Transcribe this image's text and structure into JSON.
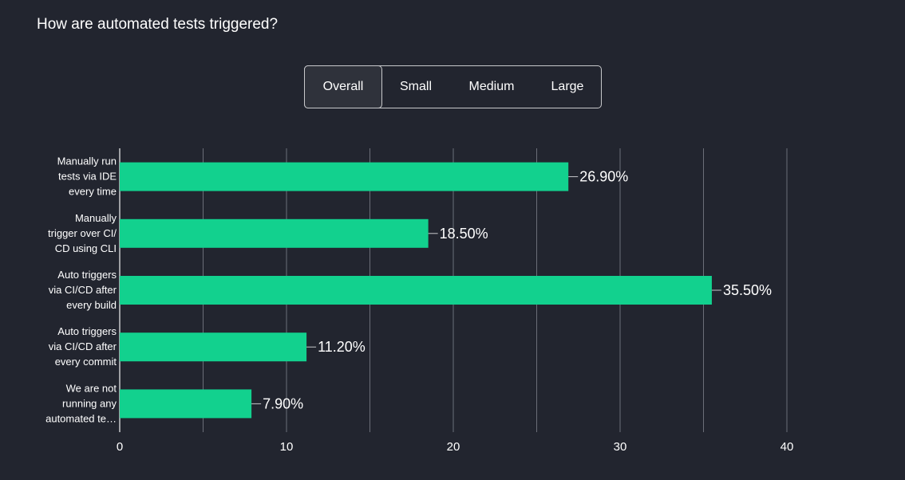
{
  "title": "How are automated tests triggered?",
  "tabs": [
    {
      "label": "Overall",
      "active": true
    },
    {
      "label": "Small",
      "active": false
    },
    {
      "label": "Medium",
      "active": false
    },
    {
      "label": "Large",
      "active": false
    }
  ],
  "colors": {
    "background": "#22252f",
    "bar": "#12d18e",
    "grid": "#6b6e78"
  },
  "chart_data": {
    "type": "bar",
    "orientation": "horizontal",
    "categories": [
      [
        "Manually run",
        "tests via IDE",
        "every time"
      ],
      [
        "Manually",
        "trigger over CI/",
        "CD using CLI"
      ],
      [
        "Auto triggers",
        "via CI/CD after",
        "every build"
      ],
      [
        "Auto triggers",
        "via CI/CD after",
        "every commit"
      ],
      [
        "We are not",
        "running any",
        "automated te…"
      ]
    ],
    "values": [
      26.9,
      18.5,
      35.5,
      11.2,
      7.9
    ],
    "value_labels": [
      "26.90%",
      "18.50%",
      "35.50%",
      "11.20%",
      "7.90%"
    ],
    "xlim": [
      0,
      40
    ],
    "xticks": [
      0,
      10,
      20,
      30,
      40
    ],
    "grid": true,
    "legend": "none"
  }
}
